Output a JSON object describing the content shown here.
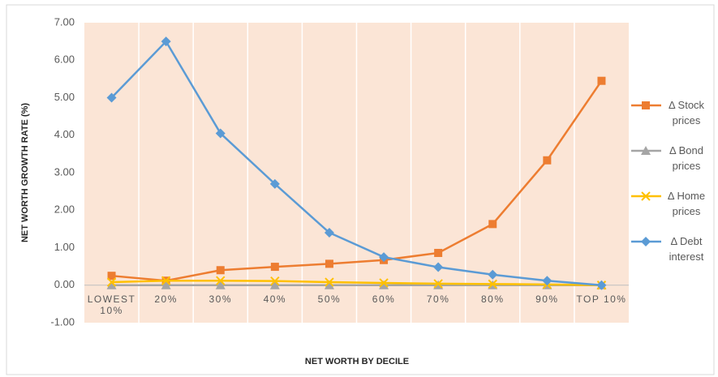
{
  "chart_data": {
    "type": "line",
    "x_label": "NET WORTH BY DECILE",
    "y_label": "NET WORTH GROWTH RATE (%)",
    "categories": [
      "LOWEST 10%",
      "20%",
      "30%",
      "40%",
      "50%",
      "60%",
      "70%",
      "80%",
      "90%",
      "TOP 10%"
    ],
    "series": [
      {
        "name": "Δ Stock prices",
        "color": "#ed7d31",
        "marker": "square",
        "values": [
          0.25,
          0.12,
          0.4,
          0.49,
          0.57,
          0.67,
          0.86,
          1.63,
          3.33,
          5.45
        ]
      },
      {
        "name": "Δ Bond prices",
        "color": "#a5a5a5",
        "marker": "triangle",
        "values": [
          0,
          0,
          0,
          0,
          0,
          0,
          0,
          0,
          0,
          0
        ]
      },
      {
        "name": "Δ Home prices",
        "color": "#ffc000",
        "marker": "x",
        "values": [
          0.08,
          0.12,
          0.12,
          0.11,
          0.08,
          0.06,
          0.04,
          0.03,
          0.02,
          0.0
        ]
      },
      {
        "name": "Δ Debt interest",
        "color": "#5b9bd5",
        "marker": "diamond",
        "values": [
          5.0,
          6.5,
          4.05,
          2.7,
          1.4,
          0.75,
          0.48,
          0.28,
          0.12,
          0.0
        ]
      }
    ],
    "ylim": [
      -1,
      7
    ],
    "yticks": [
      {
        "value": -1,
        "label": "-1.00"
      },
      {
        "value": 0,
        "label": "0.00"
      },
      {
        "value": 1,
        "label": "1.00"
      },
      {
        "value": 2,
        "label": "2.00"
      },
      {
        "value": 3,
        "label": "3.00"
      },
      {
        "value": 4,
        "label": "4.00"
      },
      {
        "value": 5,
        "label": "5.00"
      },
      {
        "value": 6,
        "label": "6.00"
      },
      {
        "value": 7,
        "label": "7.00"
      }
    ],
    "legend": "right"
  }
}
